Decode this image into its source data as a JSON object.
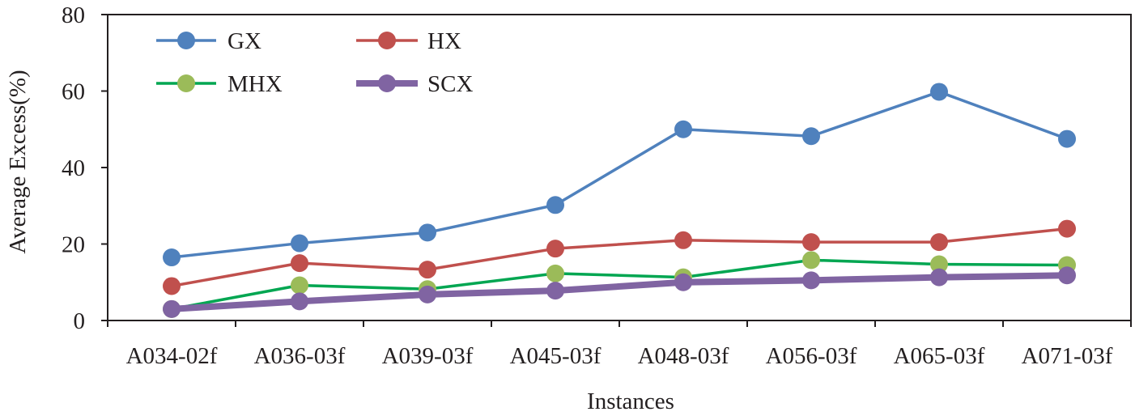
{
  "chart_data": {
    "type": "line",
    "title": "",
    "xlabel": "Instances",
    "ylabel": "Average Excess(%)",
    "ylim": [
      0,
      80
    ],
    "yticks": [
      0,
      20,
      40,
      60,
      80
    ],
    "grid": false,
    "legend_position": "top-left",
    "categories": [
      "A034-02f",
      "A036-03f",
      "A039-03f",
      "A045-03f",
      "A048-03f",
      "A056-03f",
      "A065-03f",
      "A071-03f"
    ],
    "series": [
      {
        "name": "GX",
        "color": "#4f81bd",
        "marker_color": "#4f81bd",
        "values": [
          16.5,
          20.2,
          23.0,
          30.2,
          50.0,
          48.2,
          59.8,
          47.5
        ]
      },
      {
        "name": "HX",
        "color": "#c0504d",
        "marker_color": "#c0504d",
        "values": [
          9.0,
          15.0,
          13.3,
          18.8,
          21.0,
          20.5,
          20.5,
          24.0
        ]
      },
      {
        "name": "MHX",
        "color": "#00a651",
        "marker_color": "#9bbb59",
        "values": [
          3.0,
          9.2,
          8.2,
          12.3,
          11.3,
          15.8,
          14.7,
          14.5
        ]
      },
      {
        "name": "SCX",
        "color": "#8064a2",
        "marker_color": "#8064a2",
        "values": [
          3.0,
          5.0,
          6.8,
          7.8,
          10.0,
          10.5,
          11.3,
          11.8
        ]
      }
    ]
  }
}
